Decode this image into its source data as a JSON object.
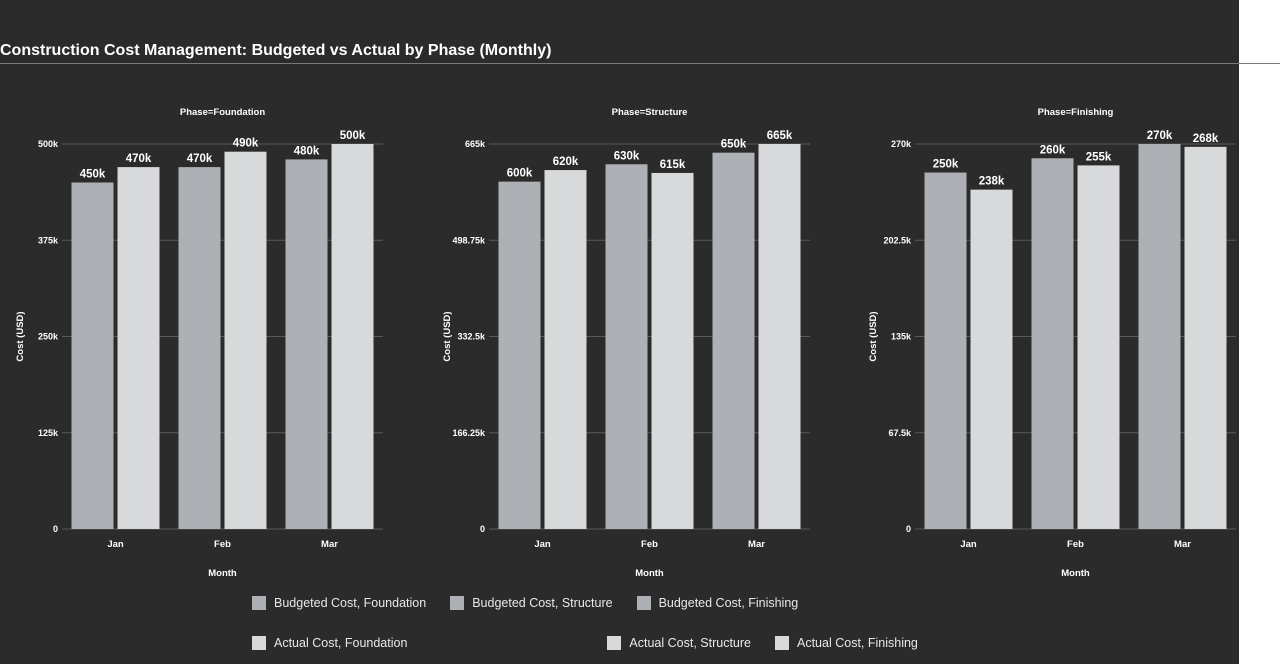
{
  "title": "Construction Cost Management: Budgeted vs Actual by Phase (Monthly)",
  "colors": {
    "background": "#2b2b2b",
    "budgeted": "#adb0b4",
    "actual": "#d8d9db",
    "text": "#ffffff",
    "grid": "#5a5a5a"
  },
  "chart_data": [
    {
      "type": "bar",
      "title": "Phase=Foundation",
      "categories": [
        "Jan",
        "Feb",
        "Mar"
      ],
      "series": [
        {
          "name": "Budgeted Cost, Foundation",
          "values": [
            450000,
            470000,
            480000
          ],
          "labels": [
            "450k",
            "470k",
            "480k"
          ]
        },
        {
          "name": "Actual Cost, Foundation",
          "values": [
            470000,
            490000,
            500000
          ],
          "labels": [
            "470k",
            "490k",
            "500k"
          ]
        }
      ],
      "xlabel": "Month",
      "ylabel": "Cost (USD)",
      "ylim": [
        0,
        500000
      ],
      "yticks": [
        0,
        125000,
        250000,
        375000,
        500000
      ],
      "ytick_labels": [
        "0",
        "125k",
        "250k",
        "375k",
        "500k"
      ],
      "grid": true
    },
    {
      "type": "bar",
      "title": "Phase=Structure",
      "categories": [
        "Jan",
        "Feb",
        "Mar"
      ],
      "series": [
        {
          "name": "Budgeted Cost, Structure",
          "values": [
            600000,
            630000,
            650000
          ],
          "labels": [
            "600k",
            "630k",
            "650k"
          ]
        },
        {
          "name": "Actual Cost, Structure",
          "values": [
            620000,
            615000,
            665000
          ],
          "labels": [
            "620k",
            "615k",
            "665k"
          ]
        }
      ],
      "xlabel": "Month",
      "ylabel": "Cost (USD)",
      "ylim": [
        0,
        665000
      ],
      "yticks": [
        0,
        166250,
        332500,
        498750,
        665000
      ],
      "ytick_labels": [
        "0",
        "166.25k",
        "332.5k",
        "498.75k",
        "665k"
      ],
      "grid": true
    },
    {
      "type": "bar",
      "title": "Phase=Finishing",
      "categories": [
        "Jan",
        "Feb",
        "Mar"
      ],
      "series": [
        {
          "name": "Budgeted Cost, Finishing",
          "values": [
            250000,
            260000,
            270000
          ],
          "labels": [
            "250k",
            "260k",
            "270k"
          ]
        },
        {
          "name": "Actual Cost, Finishing",
          "values": [
            238000,
            255000,
            268000
          ],
          "labels": [
            "238k",
            "255k",
            "268k"
          ]
        }
      ],
      "xlabel": "Month",
      "ylabel": "Cost (USD)",
      "ylim": [
        0,
        270000
      ],
      "yticks": [
        0,
        67500,
        135000,
        202500,
        270000
      ],
      "ytick_labels": [
        "0",
        "67.5k",
        "135k",
        "202.5k",
        "270k"
      ],
      "grid": true
    }
  ],
  "legend": {
    "position": "bottom",
    "items": [
      {
        "label": "Budgeted Cost, Foundation",
        "color": "#adb0b4"
      },
      {
        "label": "Budgeted Cost, Structure",
        "color": "#adb0b4"
      },
      {
        "label": "Budgeted Cost, Finishing",
        "color": "#adb0b4"
      },
      {
        "label": "Actual Cost, Foundation",
        "color": "#d8d9db"
      },
      {
        "label": "Actual Cost, Structure",
        "color": "#d8d9db"
      },
      {
        "label": "Actual Cost, Finishing",
        "color": "#d8d9db"
      }
    ]
  }
}
